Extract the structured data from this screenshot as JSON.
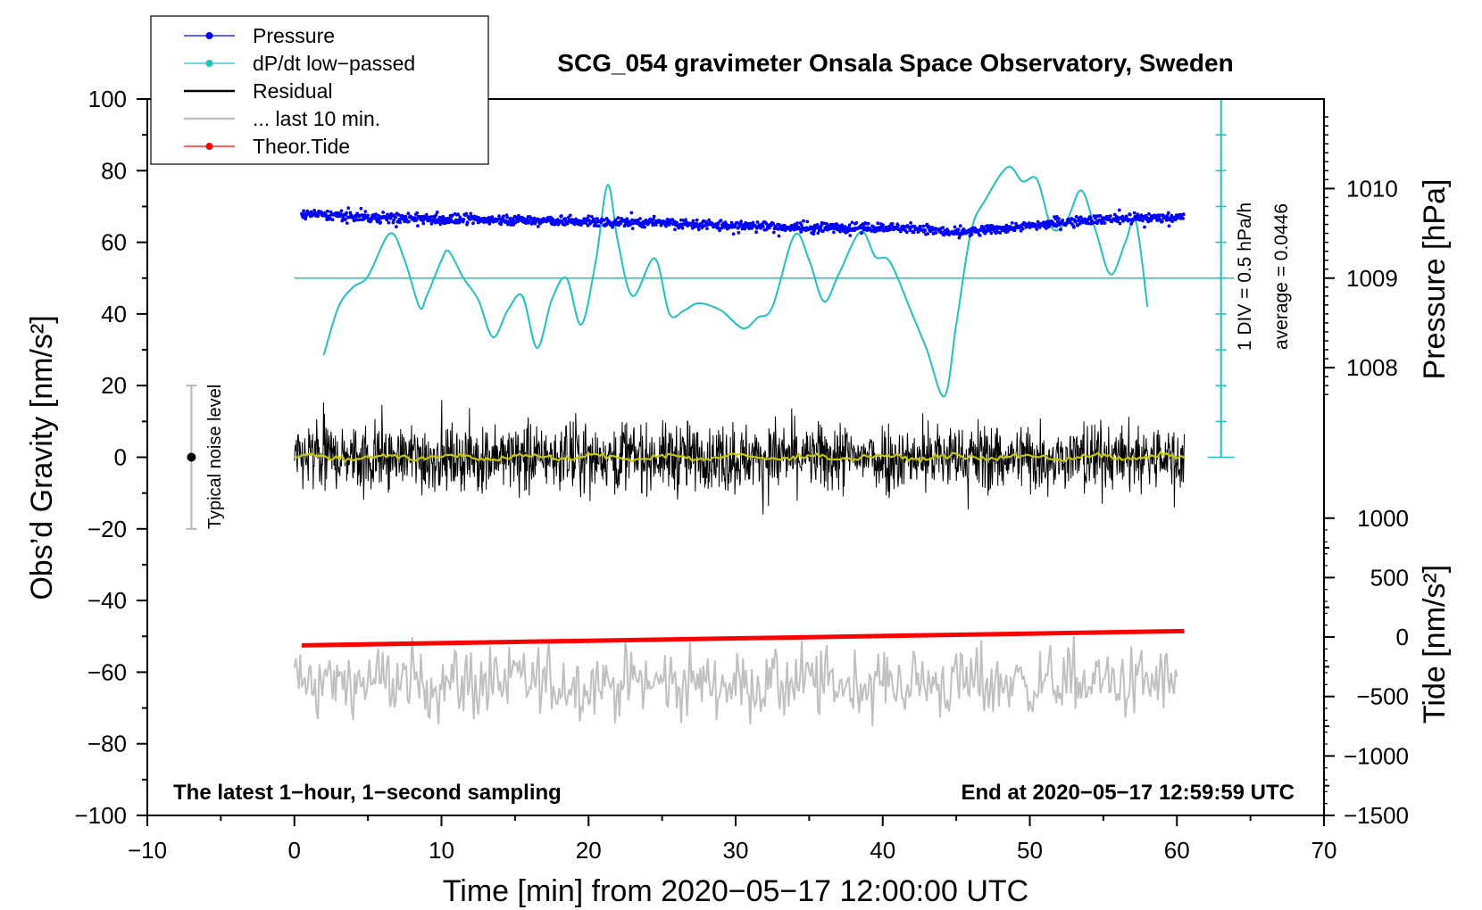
{
  "chart_data": {
    "type": "line",
    "title": "SCG_054 gravimeter Onsala Space Observatory, Sweden",
    "xlabel": "Time [min] from 2020−05−17 12:00:00 UTC",
    "ylabel_left": "Obs’d Gravity [nm/s²]",
    "ylabel_pressure": "Pressure [hPa]",
    "ylabel_tide": "Tide [nm/s²]",
    "xlim": [
      -10,
      70
    ],
    "ylim": [
      -100,
      100
    ],
    "x_ticks": [
      -10,
      0,
      10,
      20,
      30,
      40,
      50,
      60,
      70
    ],
    "x_tick_labels": [
      "−10",
      "0",
      "10",
      "20",
      "30",
      "40",
      "50",
      "60",
      "70"
    ],
    "y_ticks": [
      -100,
      -80,
      -60,
      -40,
      -20,
      0,
      20,
      40,
      60,
      80,
      100
    ],
    "y_tick_labels": [
      "−100",
      "−80",
      "−60",
      "−40",
      "−20",
      "0",
      "20",
      "40",
      "60",
      "80",
      "100"
    ],
    "pressure_axis": {
      "ticks": [
        1008,
        1009,
        1010
      ],
      "tick_labels": [
        "1008",
        "1009",
        "1010"
      ],
      "map": {
        "value_a": 1008,
        "gravity_a": 25,
        "value_b": 1010,
        "gravity_b": 75
      }
    },
    "tide_axis": {
      "ticks": [
        -1500,
        -1000,
        -500,
        0,
        500,
        1000
      ],
      "tick_labels": [
        "−1500",
        "−1000",
        "−500",
        "0",
        "500",
        "1000"
      ],
      "map": {
        "value_a": -1500,
        "gravity_a": -100,
        "value_b": 1000,
        "gravity_b": -17
      }
    },
    "dpdt_scale": {
      "label_div": "1 DIV = 0.5 hPa/h",
      "label_avg": "average = 0.0446",
      "zero_gravity": 50,
      "x": 63,
      "range": [
        0,
        100
      ]
    },
    "legend": {
      "placement": "top-left",
      "entries": [
        {
          "label": "Pressure",
          "color": "#0000ff",
          "marker": "dot"
        },
        {
          "label": "dP/dt low−passed",
          "color": "#1fc1c1",
          "marker": "dot"
        },
        {
          "label": "Residual",
          "color": "#000000",
          "marker": "none"
        },
        {
          "label": "... last 10 min.",
          "color": "#c0c0c0",
          "marker": "none"
        },
        {
          "label": "Theor.Tide",
          "color": "#ff0000",
          "marker": "dot"
        }
      ]
    },
    "noise_bar": {
      "label": "Typical noise level",
      "x": -7,
      "center": 0,
      "low": -20,
      "high": 20
    },
    "annotation_left": "The latest 1−hour, 1−second sampling",
    "annotation_right": "End at 2020−05−17 12:59:59 UTC",
    "colors": {
      "pressure": "#0000ff",
      "dpdt": "#1fc1c1",
      "residual": "#000000",
      "residual_smooth": "#c8c800",
      "last10": "#c0c0c0",
      "tide": "#ff0000"
    },
    "series": [
      {
        "name": "Pressure",
        "x": [
          0.5,
          5,
          10,
          15,
          20,
          25,
          30,
          35,
          40,
          43,
          45,
          48,
          52,
          55,
          60.5
        ],
        "values": [
          1009.72,
          1009.68,
          1009.66,
          1009.65,
          1009.63,
          1009.62,
          1009.59,
          1009.56,
          1009.57,
          1009.55,
          1009.5,
          1009.55,
          1009.62,
          1009.66,
          1009.68
        ]
      },
      {
        "name": "dP/dt low-passed",
        "x": [
          2,
          3,
          4,
          5,
          6.5,
          7.5,
          8.5,
          9,
          10,
          10.5,
          11.5,
          12.5,
          13.5,
          14.5,
          15.5,
          16.5,
          17.5,
          18.5,
          19.5,
          20.5,
          21.3,
          22,
          23,
          24.5,
          25.5,
          26.5,
          27.5,
          29,
          30.5,
          31.5,
          32.5,
          34,
          35,
          36,
          37,
          38.5,
          39.5,
          40.5,
          42,
          43,
          44.2,
          45,
          46,
          47,
          48.5,
          49.5,
          50.5,
          51.5,
          52.5,
          53.5,
          54.5,
          55.5,
          56.5,
          57.2,
          58
        ],
        "values": [
          28.5,
          42,
          47.5,
          50.5,
          62.5,
          55,
          42,
          45,
          55,
          57.5,
          50,
          44,
          33.5,
          41,
          45,
          30.5,
          44,
          50,
          37,
          55,
          76,
          60,
          45,
          55.5,
          40,
          41,
          43,
          41,
          36,
          39,
          42,
          62,
          55,
          43.5,
          51,
          63,
          56,
          54.5,
          40,
          30,
          17,
          37,
          63,
          72,
          81,
          77,
          77.5,
          64,
          66,
          74.5,
          63,
          51,
          60,
          66,
          42
        ]
      },
      {
        "name": "Residual",
        "x": [
          0,
          60.5
        ],
        "values": [
          0,
          0
        ],
        "note": "1-second residual, noise approx. ±8 nm/s² (max ±16)"
      },
      {
        "name": "... last 10 min.",
        "x": [
          0,
          60
        ],
        "values": [
          -63,
          -63
        ],
        "note": "10-minute segment replotted around −63 nm/s², amplitude approx. ±10"
      },
      {
        "name": "Theor.Tide",
        "x": [
          0.5,
          60.5
        ],
        "tide_values": [
          -70,
          50
        ]
      }
    ]
  }
}
